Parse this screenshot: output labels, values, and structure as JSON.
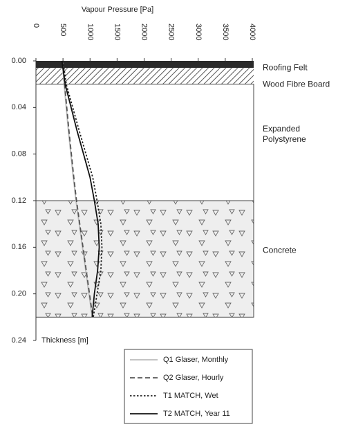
{
  "chart_data": {
    "type": "line",
    "xlabel": "Vapour Pressure [Pa]",
    "ylabel": "Thickness [m]",
    "xlim": [
      0,
      4000
    ],
    "xticks": [
      0,
      500,
      1000,
      1500,
      2000,
      2500,
      3000,
      3500,
      4000
    ],
    "ylim": [
      0,
      0.24
    ],
    "yticks": [
      {
        "value": 0,
        "label": "0.00"
      },
      0.04,
      0.08,
      0.12,
      0.16,
      {
        "value": 0.2,
        "label": "0.20"
      },
      0.24
    ],
    "layers": [
      {
        "name": "Roofing Felt",
        "from": 0,
        "to": 0.006
      },
      {
        "name": "Wood Fibre Board",
        "from": 0.006,
        "to": 0.02
      },
      {
        "name": "Expanded Polystyrene",
        "from": 0.02,
        "to": 0.12
      },
      {
        "name": "Concrete",
        "from": 0.12,
        "to": 0.22
      }
    ],
    "y": [
      0,
      0.02,
      0.06,
      0.1,
      0.12,
      0.14,
      0.16,
      0.18,
      0.2,
      0.22
    ],
    "series": [
      {
        "name": "Q1 Glaser, Monthly",
        "color": "#bbbbbb",
        "dash": "solid",
        "values": [
          490,
          520,
          600,
          690,
          740,
          800,
          860,
          920,
          980,
          1040
        ]
      },
      {
        "name": "Q2 Glaser, Hourly",
        "color": "#555555",
        "dash": "dashed",
        "values": [
          500,
          530,
          610,
          700,
          750,
          810,
          870,
          930,
          990,
          1050
        ]
      },
      {
        "name": "T1 MATCH, Wet",
        "color": "#222222",
        "dash": "dotted",
        "values": [
          500,
          560,
          800,
          1050,
          1130,
          1200,
          1220,
          1200,
          1130,
          1060
        ]
      },
      {
        "name": "T2 MATCH, Year 11",
        "color": "#111111",
        "dash": "solid",
        "values": [
          480,
          540,
          760,
          1000,
          1080,
          1150,
          1170,
          1140,
          1080,
          1040
        ]
      }
    ],
    "legend": "lower center"
  }
}
